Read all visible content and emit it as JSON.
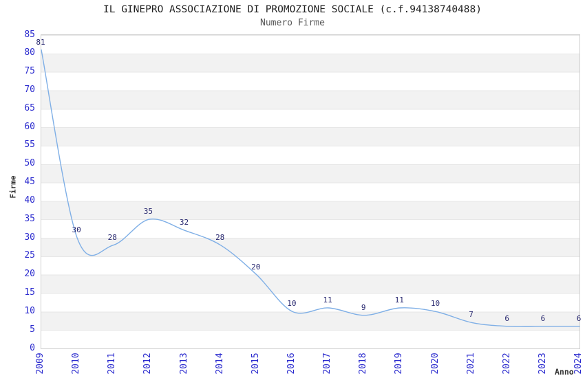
{
  "chart_data": {
    "type": "line",
    "title": "IL GINEPRO ASSOCIAZIONE DI PROMOZIONE SOCIALE (c.f.94138740488)",
    "subtitle": "Numero Firme",
    "xlabel": "Anno",
    "ylabel": "Firme",
    "x": [
      "2009",
      "2010",
      "2011",
      "2012",
      "2013",
      "2014",
      "2015",
      "2016",
      "2017",
      "2018",
      "2019",
      "2020",
      "2021",
      "2022",
      "2023",
      "2024"
    ],
    "values": [
      81,
      30,
      28,
      35,
      32,
      28,
      20,
      10,
      11,
      9,
      11,
      10,
      7,
      6,
      6,
      6
    ],
    "ylim": [
      0,
      85
    ],
    "y_ticks": [
      0,
      5,
      10,
      15,
      20,
      25,
      30,
      35,
      40,
      45,
      50,
      55,
      60,
      65,
      70,
      75,
      80,
      85
    ],
    "grid": "horizontal-bands-every-5",
    "legend": "none",
    "point_labels_shown": true,
    "colors": {
      "line": "#7fafe6",
      "tick_label": "#2a2ace",
      "point_label": "#27276f",
      "band": "#f2f2f2",
      "band_line": "#e7e7e7",
      "border": "#cfcfcf",
      "title": "#222222",
      "subtitle": "#555555",
      "axis_label": "#333333"
    }
  }
}
